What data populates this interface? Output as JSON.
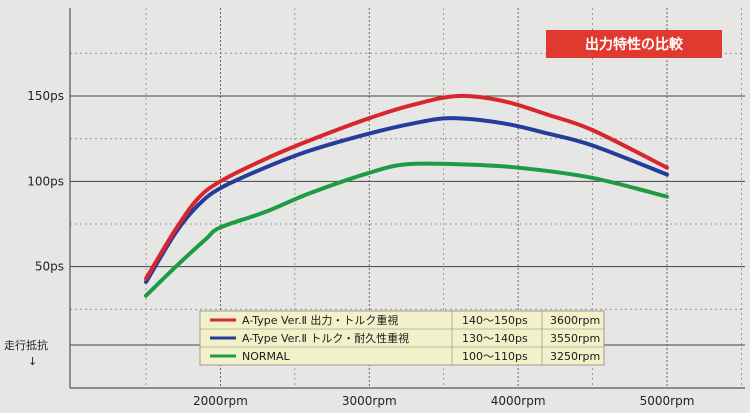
{
  "chart_data": {
    "type": "line",
    "title": "出力特性の比較",
    "x_unit": "rpm",
    "y_unit": "ps",
    "xlim": [
      1000,
      5500
    ],
    "ylim": [
      0,
      190
    ],
    "x_ticks": [
      {
        "value": 2000,
        "label": "2000rpm"
      },
      {
        "value": 3000,
        "label": "3000rpm"
      },
      {
        "value": 4000,
        "label": "4000rpm"
      },
      {
        "value": 5000,
        "label": "5000rpm"
      }
    ],
    "y_ticks": [
      {
        "value": 50,
        "label": "50ps"
      },
      {
        "value": 100,
        "label": "100ps"
      },
      {
        "value": 150,
        "label": "150ps"
      }
    ],
    "road_load_label": "走行抵抗",
    "road_load_arrow": "↓",
    "grid": true,
    "series": [
      {
        "name": "A-Type Ver.Ⅱ 出力・トルク重視",
        "range": "140〜150ps",
        "peak_rpm": "3600rpm",
        "color": "#d8262e",
        "points": [
          [
            1500,
            43
          ],
          [
            1700,
            72
          ],
          [
            1850,
            90
          ],
          [
            2000,
            100
          ],
          [
            2300,
            113
          ],
          [
            2600,
            124
          ],
          [
            3000,
            137
          ],
          [
            3300,
            145
          ],
          [
            3600,
            150
          ],
          [
            3900,
            147
          ],
          [
            4200,
            139
          ],
          [
            4500,
            130
          ],
          [
            5000,
            108
          ]
        ]
      },
      {
        "name": "A-Type Ver.Ⅱ トルク・耐久性重視",
        "range": "130〜140ps",
        "peak_rpm": "3550rpm",
        "color": "#263c9a",
        "points": [
          [
            1500,
            41
          ],
          [
            1700,
            70
          ],
          [
            1850,
            86
          ],
          [
            2000,
            96
          ],
          [
            2300,
            108
          ],
          [
            2600,
            118
          ],
          [
            3000,
            128
          ],
          [
            3300,
            134
          ],
          [
            3550,
            137
          ],
          [
            3900,
            134
          ],
          [
            4200,
            128
          ],
          [
            4500,
            121
          ],
          [
            5000,
            104
          ]
        ]
      },
      {
        "name": "NORMAL",
        "range": "100〜110ps",
        "peak_rpm": "3250rpm",
        "color": "#1f9a45",
        "points": [
          [
            1500,
            33
          ],
          [
            1700,
            50
          ],
          [
            1900,
            66
          ],
          [
            2000,
            73
          ],
          [
            2300,
            82
          ],
          [
            2600,
            93
          ],
          [
            3000,
            105
          ],
          [
            3250,
            110
          ],
          [
            3600,
            110
          ],
          [
            4000,
            108
          ],
          [
            4500,
            102
          ],
          [
            5000,
            91
          ]
        ]
      }
    ]
  }
}
